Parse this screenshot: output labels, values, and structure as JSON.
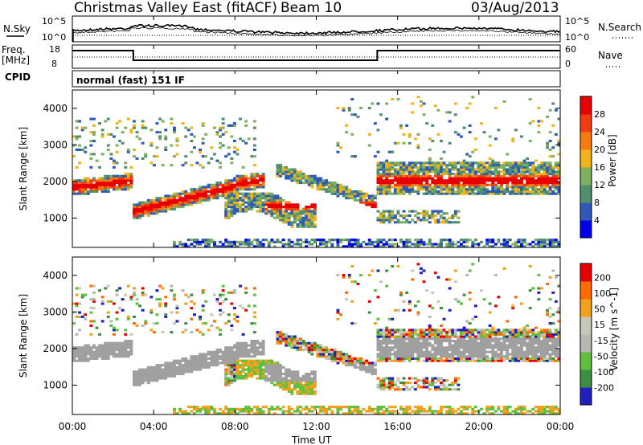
{
  "header": {
    "station": "Christmas Valley East (fitACF)",
    "beam": "Beam 10",
    "date": "03/Aug/2013"
  },
  "strip_labels": {
    "nsky": "N.Sky",
    "nsearch": "N.Search",
    "freq_line1": "Freq.",
    "freq_line2": "[MHz]",
    "nave": "Nave",
    "cpid": "CPID",
    "cpid_value": "normal (fast) 151 IF",
    "noise_ticks_left": [
      "10^5",
      "10^0"
    ],
    "noise_ticks_right": [
      "10^5",
      "10^0"
    ],
    "freq_ticks": [
      "18",
      "8"
    ],
    "nave_ticks": [
      "60",
      "0"
    ]
  },
  "colors": {
    "power_scale": [
      "#0000ee",
      "#2e59b8",
      "#4f8f6f",
      "#7fb060",
      "#f2b21a",
      "#f77a10",
      "#f23c10",
      "#e80000"
    ],
    "velocity_scale": [
      "#e80000",
      "#ff6a00",
      "#f2a21a",
      "#c8c8b8",
      "#b8b8b0",
      "#5fc040",
      "#3c8f40",
      "#2020c0"
    ],
    "ground_scatter": "#a0a0a0"
  },
  "chart_data": [
    {
      "type": "heatmap",
      "name": "power-panel",
      "ylabel": "Slant Range [km]",
      "y_ticks": [
        1000,
        2000,
        3000,
        4000
      ],
      "ylim": [
        200,
        4500
      ],
      "colorbar_label": "Power [dB]",
      "colorbar_ticks": [
        4,
        8,
        12,
        16,
        20,
        24,
        28
      ],
      "colorbar_range": [
        0,
        32
      ]
    },
    {
      "type": "heatmap",
      "name": "velocity-panel",
      "xlabel": "Time UT",
      "ylabel": "Slant Range [km]",
      "x_ticks": [
        "00:00",
        "04:00",
        "08:00",
        "12:00",
        "16:00",
        "20:00",
        "00:00"
      ],
      "y_ticks": [
        1000,
        2000,
        3000,
        4000
      ],
      "ylim": [
        200,
        4500
      ],
      "colorbar_label": "Velocity [m s^-1]",
      "colorbar_ticks": [
        200,
        100,
        50,
        15,
        -15,
        -50,
        -100,
        -200
      ]
    }
  ]
}
